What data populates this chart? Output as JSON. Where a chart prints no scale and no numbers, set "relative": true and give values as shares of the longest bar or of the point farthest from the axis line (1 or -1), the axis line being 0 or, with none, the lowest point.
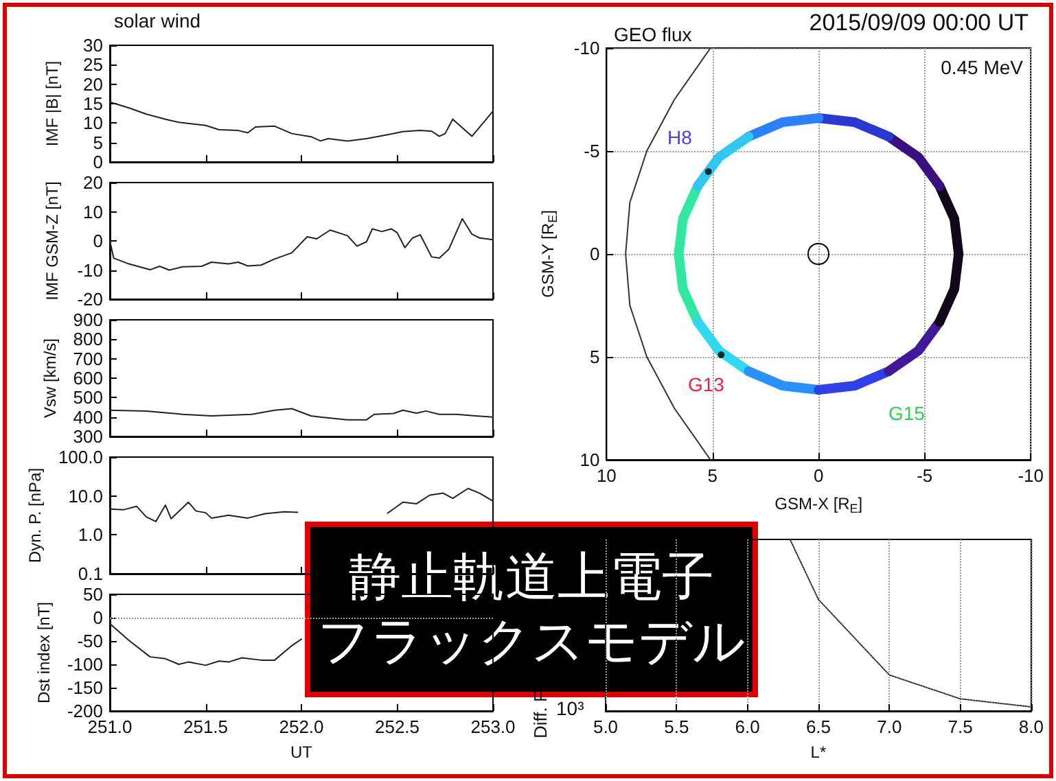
{
  "chart_data": [
    {
      "type": "line",
      "title": "solar wind",
      "ylabel": "IMF |B| [nT]",
      "annotations": [
        "静止軌道上電子",
        "フラックスモデル"
      ],
      "tick_labels": "y",
      "xlim": [
        251,
        253
      ],
      "xticks": [
        251,
        251.5,
        252,
        252.5,
        253
      ],
      "ylim": [
        0,
        30
      ],
      "yticks": [
        0,
        5,
        10,
        15,
        20,
        25,
        30
      ],
      "color": "#222222",
      "x": [
        251.0,
        251.1,
        251.19,
        251.29,
        251.36,
        251.5,
        251.57,
        251.67,
        251.72,
        251.76,
        251.86,
        251.95,
        252.05,
        252.1,
        252.14,
        252.24,
        252.34,
        252.46,
        252.53,
        252.62,
        252.68,
        252.72,
        252.75,
        252.79,
        252.89,
        252.96,
        253.0
      ],
      "values": [
        15.4,
        13.9,
        12.3,
        11.0,
        10.2,
        9.4,
        8.3,
        8.1,
        7.5,
        9.0,
        9.2,
        7.3,
        6.5,
        5.4,
        6.0,
        5.4,
        6.0,
        7.1,
        7.8,
        8.1,
        7.9,
        6.6,
        7.3,
        11.0,
        6.6,
        10.7,
        13.1
      ]
    },
    {
      "type": "line",
      "ylabel": "IMF GSM-Z [nT]",
      "tick_labels": "y",
      "xlim": [
        251,
        253
      ],
      "xticks": [
        251,
        251.5,
        252,
        252.5,
        253
      ],
      "ylim": [
        -20,
        20
      ],
      "yticks": [
        -20,
        -10,
        0,
        10,
        20
      ],
      "color": "#222222",
      "x": [
        251.0,
        251.02,
        251.1,
        251.21,
        251.26,
        251.31,
        251.38,
        251.48,
        251.53,
        251.62,
        251.67,
        251.72,
        251.79,
        251.86,
        251.95,
        252.03,
        252.08,
        252.15,
        252.24,
        252.29,
        252.34,
        252.37,
        252.42,
        252.47,
        252.5,
        252.54,
        252.58,
        252.62,
        252.68,
        252.72,
        252.77,
        252.84,
        252.89,
        252.93,
        253.0
      ],
      "values": [
        0,
        -5.9,
        -7.9,
        -9.9,
        -8.7,
        -10,
        -8.9,
        -8.7,
        -7.3,
        -7.9,
        -7.3,
        -8.6,
        -8.3,
        -6.2,
        -4.1,
        1.4,
        0.7,
        3.7,
        1.8,
        -1.8,
        -0.3,
        4.1,
        3.2,
        4.1,
        2.8,
        -2.3,
        1.0,
        2.1,
        -5.5,
        -5.9,
        -2.8,
        7.6,
        2.3,
        1.0,
        0.4
      ]
    },
    {
      "type": "line",
      "ylabel": "Vsw [km/s]",
      "tick_labels": "y",
      "xlim": [
        251,
        253
      ],
      "xticks": [
        251,
        251.5,
        252,
        252.5,
        253
      ],
      "ylim": [
        300,
        900
      ],
      "yticks": [
        300,
        400,
        500,
        600,
        700,
        800,
        900
      ],
      "color": "#222222",
      "x": [
        251.0,
        251.19,
        251.38,
        251.53,
        251.74,
        251.86,
        251.95,
        252.05,
        252.1,
        252.24,
        252.34,
        252.38,
        252.48,
        252.53,
        252.6,
        252.65,
        252.72,
        252.81,
        252.91,
        253.0
      ],
      "values": [
        435,
        431,
        414,
        406,
        414,
        435,
        443,
        406,
        400,
        386,
        386,
        414,
        418,
        435,
        420,
        431,
        414,
        414,
        406,
        400
      ]
    },
    {
      "type": "line",
      "ylabel": "Dyn. P. [nPa]",
      "tick_labels": "y",
      "log": true,
      "xlim": [
        251,
        253
      ],
      "xticks": [
        251,
        251.5,
        252,
        252.5,
        253
      ],
      "ylim": [
        0.1,
        100
      ],
      "yticks": [
        0.1,
        {
          "value": 1,
          "label": "1.0"
        },
        {
          "value": 10,
          "label": "10.0"
        },
        {
          "value": 100,
          "label": "100.0"
        }
      ],
      "color": "#222222",
      "x": [
        251.0,
        251.07,
        251.14,
        251.19,
        251.24,
        251.29,
        251.32,
        251.41,
        251.45,
        251.5,
        251.53,
        251.62,
        251.72,
        251.81,
        251.91,
        251.98,
        252.2,
        252.45,
        252.53,
        252.6,
        252.67,
        252.74,
        252.79,
        252.87,
        252.93,
        253.0
      ],
      "values": [
        4.6,
        4.4,
        5.4,
        2.9,
        2.2,
        5.8,
        2.6,
        6.9,
        4.1,
        3.7,
        2.7,
        3.2,
        2.7,
        3.5,
        3.9,
        3.8,
        null,
        3.6,
        6.9,
        6.3,
        10.5,
        11.8,
        8.7,
        15.6,
        11.8,
        7.4
      ]
    },
    {
      "type": "line",
      "xlabel": "UT",
      "ylabel": "Dst index [nT]",
      "xlim": [
        251,
        253
      ],
      "xticks": [
        {
          "value": 251,
          "label": "251.0"
        },
        {
          "value": 251.5,
          "label": "251.5"
        },
        {
          "value": 252,
          "label": "252.0"
        },
        {
          "value": 252.5,
          "label": "252.5"
        },
        {
          "value": 253,
          "label": "253.0"
        }
      ],
      "ylim": [
        -200,
        50
      ],
      "yticks": [
        -200,
        -150,
        -100,
        -50,
        0,
        50
      ],
      "color": "#222222",
      "ref_lines": [
        {
          "axis": "y",
          "value": 0,
          "line_style": "dotted",
          "color": "#999999"
        }
      ],
      "x": [
        251.0,
        251.1,
        251.21,
        251.29,
        251.36,
        251.41,
        251.5,
        251.57,
        251.62,
        251.69,
        251.79,
        251.86,
        251.95,
        252.0
      ],
      "values": [
        -13,
        -49,
        -84,
        -88,
        -100,
        -95,
        -102,
        -93,
        -95,
        -86,
        -91,
        -91,
        -60,
        -46
      ]
    },
    {
      "type": "line",
      "title": "2015/09/09 00:00 UT",
      "subtitle": "GEO flux",
      "xlabel": "GSM-X [R$_{E}$]",
      "ylabel": "GSM-Y [R$_{E}$]",
      "grid": true,
      "annotations": [
        "0.45 MeV",
        "H8",
        "G13",
        "G15"
      ],
      "xlim": [
        10,
        -10
      ],
      "xticks": [
        10,
        5,
        0,
        -5,
        -10
      ],
      "ylim": [
        10,
        -10
      ],
      "yticks": [
        10,
        5,
        0,
        -5,
        -10
      ],
      "series": [
        {
          "color": "#333333",
          "x": [
            5.1,
            6.8,
            8.1,
            8.9,
            9.1,
            8.9,
            8.1,
            6.8,
            5.1
          ],
          "values": [
            -10,
            -7.5,
            -5,
            -2.5,
            0,
            2.5,
            5,
            7.5,
            10
          ]
        },
        {
          "color": "#30e8a0",
          "x": [
            5.7,
            6.4,
            6.6,
            6.4,
            5.7
          ],
          "values": [
            -3.3,
            -1.7,
            0,
            1.7,
            3.3
          ]
        },
        {
          "color": "#30d8f0",
          "x": [
            5.7,
            4.7,
            3.3
          ],
          "values": [
            3.3,
            4.7,
            5.7
          ]
        },
        {
          "color": "#2a90ff",
          "x": [
            3.3,
            1.7,
            0
          ],
          "values": [
            5.7,
            6.4,
            6.6
          ]
        },
        {
          "color": "#3040e8",
          "x": [
            0,
            -1.7,
            -3.3
          ],
          "values": [
            6.6,
            6.4,
            5.7
          ]
        },
        {
          "color": "#40189a",
          "x": [
            -3.3,
            -4.7,
            -5.7
          ],
          "values": [
            5.7,
            4.7,
            3.3
          ]
        },
        {
          "color": "#100818",
          "x": [
            -5.7,
            -6.4,
            -6.6,
            -6.4,
            -5.7
          ],
          "values": [
            3.3,
            1.7,
            0,
            -1.7,
            -3.3
          ]
        },
        {
          "color": "#3a1080",
          "x": [
            -5.7,
            -4.7,
            -3.3
          ],
          "values": [
            -3.3,
            -4.7,
            -5.7
          ]
        },
        {
          "color": "#2838d0",
          "x": [
            -3.3,
            -1.7,
            0
          ],
          "values": [
            -5.7,
            -6.4,
            -6.6
          ]
        },
        {
          "color": "#2a80ff",
          "x": [
            0,
            1.7,
            3.3
          ],
          "values": [
            -6.6,
            -6.4,
            -5.7
          ]
        },
        {
          "color": "#30c8f0",
          "x": [
            3.3,
            4.7,
            5.7
          ],
          "values": [
            -5.7,
            -4.7,
            -3.3
          ]
        },
        {
          "type": "scatter",
          "color": "#000000",
          "marker": "circle",
          "x": [
            5.2,
            4.6
          ],
          "values": [
            -4.0,
            4.9
          ]
        }
      ]
    },
    {
      "type": "line",
      "xlabel": "L*",
      "ylabel": "Diff. F",
      "annotations": [
        "10³"
      ],
      "relative": true,
      "grid": "x",
      "line_style": "dotted",
      "color": "#333333",
      "xlim": [
        5,
        8
      ],
      "xticks": [
        {
          "value": 5,
          "label": "5.0"
        },
        {
          "value": 5.5,
          "label": "5.5"
        },
        {
          "value": 6,
          "label": "6.0"
        },
        {
          "value": 6.5,
          "label": "6.5"
        },
        {
          "value": 7,
          "label": "7.0"
        },
        {
          "value": 7.5,
          "label": "7.5"
        },
        {
          "value": 8,
          "label": "8.0"
        }
      ],
      "x": [
        6.3,
        6.5,
        7.0,
        7.5,
        8.0
      ],
      "values": [
        1,
        0.65,
        0.21,
        0.071,
        0.024
      ]
    }
  ]
}
